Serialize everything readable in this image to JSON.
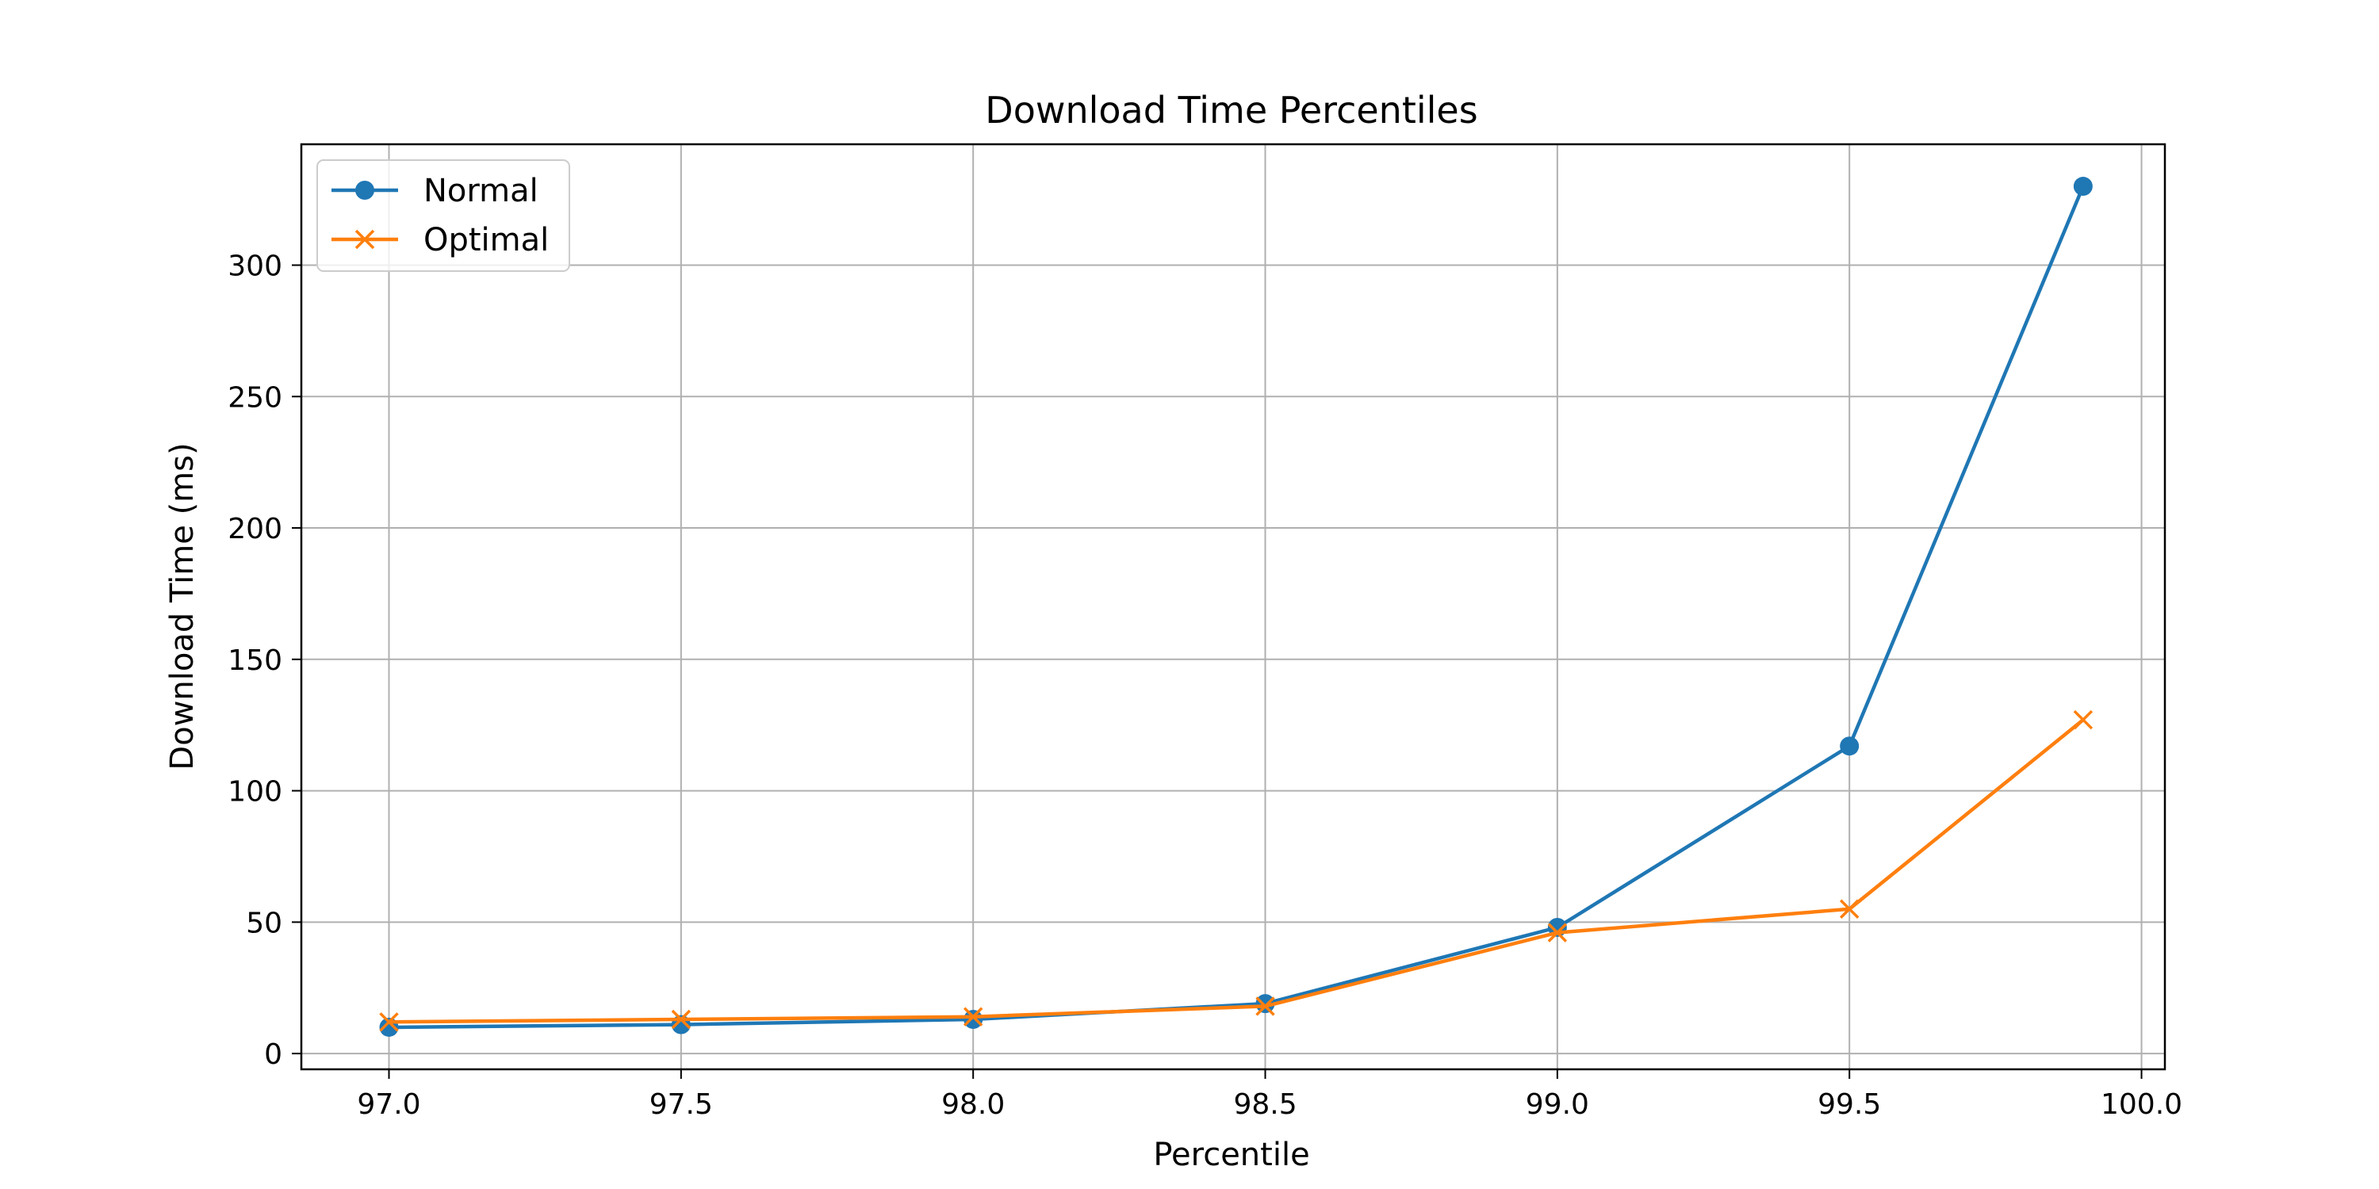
{
  "chart_data": {
    "type": "line",
    "title": "Download Time Percentiles",
    "xlabel": "Percentile",
    "ylabel": "Download Time (ms)",
    "x": [
      97.0,
      97.5,
      98.0,
      98.5,
      99.0,
      99.5,
      99.9
    ],
    "xlim": [
      96.85,
      100.04
    ],
    "ylim": [
      -6,
      346
    ],
    "xticks": [
      97.0,
      97.5,
      98.0,
      98.5,
      99.0,
      99.5,
      100.0
    ],
    "xtick_labels": [
      "97.0",
      "97.5",
      "98.0",
      "98.5",
      "99.0",
      "99.5",
      "100.0"
    ],
    "yticks": [
      0,
      50,
      100,
      150,
      200,
      250,
      300
    ],
    "ytick_labels": [
      "0",
      "50",
      "100",
      "150",
      "200",
      "250",
      "300"
    ],
    "grid": true,
    "legend_position": "top-left",
    "series": [
      {
        "name": "Normal",
        "values": [
          10,
          11,
          13,
          19,
          48,
          117,
          330
        ],
        "color": "#1f77b4",
        "marker": "circle"
      },
      {
        "name": "Optimal",
        "values": [
          12,
          13,
          14,
          18,
          46,
          55,
          127
        ],
        "color": "#ff7f0e",
        "marker": "x"
      }
    ]
  }
}
